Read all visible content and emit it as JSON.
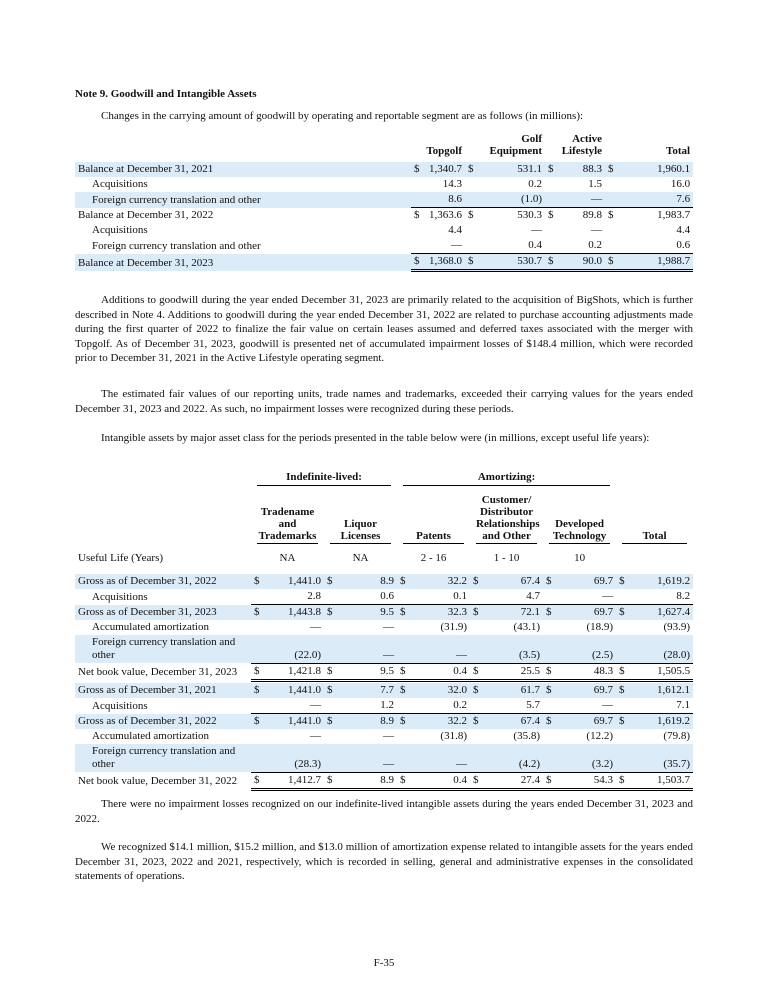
{
  "note_title": "Note 9. Goodwill and Intangible Assets",
  "paragraphs": [
    "Changes in the carrying amount of goodwill by operating and reportable segment are as follows (in millions):",
    "Additions to goodwill during the year ended December 31, 2023 are primarily related to the acquisition of BigShots, which is further described in Note 4. Additions to goodwill during the year ended December 31, 2022 are related to purchase accounting adjustments made during the first quarter of 2022 to finalize the fair value on certain leases assumed and deferred taxes associated with the merger with Topgolf. As of December 31, 2023, goodwill is presented net of accumulated impairment losses of $148.4 million, which were recorded prior to December 31, 2021 in the Active Lifestyle operating segment.",
    "The estimated fair values of our reporting units, trade names and trademarks, exceeded their carrying values for the years ended December 31, 2023 and 2022. As such, no impairment losses were recognized during these periods.",
    "Intangible assets by major asset class for the periods presented in the table below were (in millions, except useful life years):",
    "There were no impairment losses recognized on our indefinite-lived intangible assets during the years ended December 31, 2023 and 2022.",
    "We recognized $14.1 million, $15.2 million, and $13.0 million of amortization expense related to intangible assets for the years ended December 31, 2023, 2022 and 2021, respectively, which is recorded in selling, general and administrative expenses in the consolidated statements of operations."
  ],
  "currency": "$",
  "goodwill_table": {
    "columns": [
      [
        "Topgolf"
      ],
      [
        "Golf",
        "Equipment"
      ],
      [
        "Active",
        "Lifestyle"
      ],
      [
        "Total"
      ]
    ],
    "rows": [
      {
        "label": "Balance at December 31, 2021",
        "values": [
          "1,340.7",
          "531.1",
          "88.3",
          "1,960.1"
        ],
        "dollar": true,
        "shade": true
      },
      {
        "label": "Acquisitions",
        "values": [
          "14.3",
          "0.2",
          "1.5",
          "16.0"
        ],
        "indent": true
      },
      {
        "label": "Foreign currency translation and other",
        "values": [
          "8.6",
          "(1.0)",
          "—",
          "7.6"
        ],
        "indent": true,
        "shade": true
      },
      {
        "label": "Balance at December 31, 2022",
        "values": [
          "1,363.6",
          "530.3",
          "89.8",
          "1,983.7"
        ],
        "dollar": true,
        "rule_above": true
      },
      {
        "label": "Acquisitions",
        "values": [
          "4.4",
          "—",
          "—",
          "4.4"
        ],
        "indent": true
      },
      {
        "label": "Foreign currency translation and other",
        "values": [
          "—",
          "0.4",
          "0.2",
          "0.6"
        ],
        "indent": true
      },
      {
        "label": "Balance at December 31, 2023",
        "values": [
          "1,368.0",
          "530.7",
          "90.0",
          "1,988.7"
        ],
        "dollar": true,
        "shade": true,
        "rule_above": true,
        "double_rule": true
      }
    ]
  },
  "intangibles_table": {
    "groups": [
      {
        "label": "Indefinite-lived:",
        "span": 2
      },
      {
        "label": "Amortizing:",
        "span": 3
      }
    ],
    "columns": [
      [
        "Tradename",
        "and",
        "Trademarks"
      ],
      [
        "Liquor",
        "Licenses"
      ],
      [
        "Patents"
      ],
      [
        "Customer/",
        "Distributor",
        "Relationships",
        "and Other"
      ],
      [
        "Developed",
        "Technology"
      ],
      [
        "Total"
      ]
    ],
    "useful_life": {
      "label": "Useful Life (Years)",
      "values": [
        "NA",
        "NA",
        "2 - 16",
        "1 - 10",
        "10"
      ]
    },
    "sections": [
      {
        "rows": [
          {
            "label": "Gross as of December 31, 2022",
            "values": [
              "1,441.0",
              "8.9",
              "32.2",
              "67.4",
              "69.7",
              "1,619.2"
            ],
            "dollar": true,
            "shade": true
          },
          {
            "label": "Acquisitions",
            "values": [
              "2.8",
              "0.6",
              "0.1",
              "4.7",
              "—",
              "8.2"
            ],
            "indent": true
          },
          {
            "label": "Gross as of December 31, 2023",
            "values": [
              "1,443.8",
              "9.5",
              "32.3",
              "72.1",
              "69.7",
              "1,627.4"
            ],
            "dollar": true,
            "shade": true,
            "rule_above": true
          },
          {
            "label": "Accumulated amortization",
            "values": [
              "—",
              "—",
              "(31.9)",
              "(43.1)",
              "(18.9)",
              "(93.9)"
            ],
            "indent": true
          },
          {
            "label": "Foreign currency translation and other",
            "values": [
              "(22.0)",
              "—",
              "—",
              "(3.5)",
              "(2.5)",
              "(28.0)"
            ],
            "indent": true,
            "shade": true
          },
          {
            "label": "Net book value, December 31, 2023",
            "values": [
              "1,421.8",
              "9.5",
              "0.4",
              "25.5",
              "48.3",
              "1,505.5"
            ],
            "dollar": true,
            "rule_above": true,
            "double_rule": true
          }
        ]
      },
      {
        "rows": [
          {
            "label": "Gross as of December 31, 2021",
            "values": [
              "1,441.0",
              "7.7",
              "32.0",
              "61.7",
              "69.7",
              "1,612.1"
            ],
            "dollar": true,
            "shade": true
          },
          {
            "label": "Acquisitions",
            "values": [
              "—",
              "1.2",
              "0.2",
              "5.7",
              "—",
              "7.1"
            ],
            "indent": true
          },
          {
            "label": "Gross as of December 31, 2022",
            "values": [
              "1,441.0",
              "8.9",
              "32.2",
              "67.4",
              "69.7",
              "1,619.2"
            ],
            "dollar": true,
            "shade": true,
            "rule_above": true
          },
          {
            "label": "Accumulated amortization",
            "values": [
              "—",
              "—",
              "(31.8)",
              "(35.8)",
              "(12.2)",
              "(79.8)"
            ],
            "indent": true
          },
          {
            "label": "Foreign currency translation and other",
            "values": [
              "(28.3)",
              "—",
              "—",
              "(4.2)",
              "(3.2)",
              "(35.7)"
            ],
            "indent": true,
            "shade": true
          },
          {
            "label": "Net book value, December 31, 2022",
            "values": [
              "1,412.7",
              "8.9",
              "0.4",
              "27.4",
              "54.3",
              "1,503.7"
            ],
            "dollar": true,
            "rule_above": true,
            "double_rule": true
          }
        ]
      }
    ]
  },
  "footer": "F-35"
}
